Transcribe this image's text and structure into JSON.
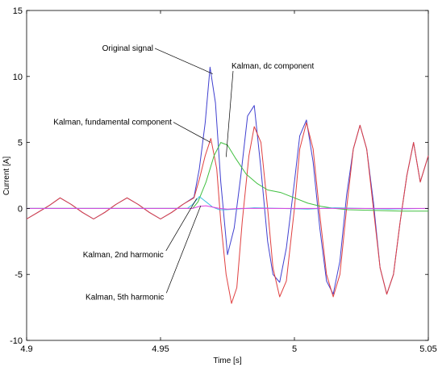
{
  "chart_data": {
    "type": "line",
    "title": "",
    "xlabel": "Time [s]",
    "ylabel": "Current [A]",
    "xlim": [
      4.9,
      5.05
    ],
    "ylim": [
      -10,
      15
    ],
    "xticks": [
      4.9,
      4.95,
      5,
      5.05
    ],
    "xtick_labels": [
      "4.9",
      "4.95",
      "5",
      "5.05"
    ],
    "yticks": [
      -10,
      -5,
      0,
      5,
      10,
      15
    ],
    "ytick_labels": [
      "-10",
      "-5",
      "0",
      "5",
      "10",
      "15"
    ],
    "grid": false,
    "legend": "none",
    "annotations": [
      {
        "id": "orig",
        "text": "Original signal",
        "x": 4.9282,
        "y": 11.95,
        "anchor": "start",
        "arrow_to": [
          4.9695,
          10.2
        ]
      },
      {
        "id": "dc",
        "text": "Kalman, dc component",
        "x": 4.9765,
        "y": 10.6,
        "anchor": "start",
        "arrow_to": [
          4.9745,
          3.9
        ]
      },
      {
        "id": "fund",
        "text": "Kalman, fundamental component",
        "x": 4.91,
        "y": 6.35,
        "anchor": "start",
        "arrow_to": [
          4.9687,
          5.0
        ]
      },
      {
        "id": "h2",
        "text": "Kalman, 2nd harmonic",
        "x": 4.921,
        "y": -3.7,
        "anchor": "start",
        "arrow_to": [
          4.9635,
          0.75
        ]
      },
      {
        "id": "h5",
        "text": "Kalman, 5th harmonic",
        "x": 4.922,
        "y": -6.9,
        "anchor": "start",
        "arrow_to": [
          4.965,
          0.2
        ]
      }
    ],
    "series": [
      {
        "id": "original",
        "color": "#4040d0",
        "x": [
          4.9,
          4.9042,
          4.9083,
          4.9125,
          4.9167,
          4.9208,
          4.925,
          4.9292,
          4.9333,
          4.9375,
          4.9417,
          4.9458,
          4.95,
          4.9542,
          4.9583,
          4.9625,
          4.9645,
          4.9667,
          4.9685,
          4.9705,
          4.9725,
          4.975,
          4.9775,
          4.98,
          4.9825,
          4.985,
          4.9875,
          4.99,
          4.992,
          4.9945,
          4.997,
          5.0,
          5.002,
          5.0045,
          5.007,
          5.0095,
          5.012,
          5.0145,
          5.017,
          5.0195,
          5.022,
          5.0245,
          5.027,
          5.0295,
          5.032,
          5.0345,
          5.037,
          5.0395,
          5.042,
          5.0445,
          5.047,
          5.05
        ],
        "y": [
          -0.8,
          -0.3,
          0.2,
          0.8,
          0.3,
          -0.3,
          -0.8,
          -0.3,
          0.3,
          0.8,
          0.3,
          -0.3,
          -0.8,
          -0.3,
          0.3,
          0.85,
          3.0,
          6.5,
          10.7,
          8.0,
          2.0,
          -3.5,
          -1.5,
          2.5,
          7.0,
          7.8,
          3.0,
          -2.5,
          -5.0,
          -5.6,
          -3.0,
          2.0,
          5.5,
          6.7,
          3.5,
          -1.5,
          -5.5,
          -6.5,
          -4.0,
          1.0,
          4.5,
          6.3,
          4.5,
          0.5,
          -4.5,
          -6.5,
          -5.0,
          -1.0,
          2.5,
          5.0,
          2.0,
          4.0
        ]
      },
      {
        "id": "fundamental",
        "color": "#e04040",
        "x": [
          4.9,
          4.9042,
          4.9083,
          4.9125,
          4.9167,
          4.9208,
          4.925,
          4.9292,
          4.9333,
          4.9375,
          4.9417,
          4.9458,
          4.95,
          4.9542,
          4.9583,
          4.9625,
          4.9645,
          4.9667,
          4.9688,
          4.971,
          4.9725,
          4.9745,
          4.9765,
          4.9785,
          4.9805,
          4.983,
          4.985,
          4.9875,
          4.99,
          4.992,
          4.9945,
          4.997,
          5.0,
          5.002,
          5.0045,
          5.007,
          5.0095,
          5.012,
          5.0145,
          5.017,
          5.0195,
          5.022,
          5.0245,
          5.027,
          5.0295,
          5.032,
          5.0345,
          5.037,
          5.0395,
          5.042,
          5.0445,
          5.047,
          5.05
        ],
        "y": [
          -0.8,
          -0.3,
          0.2,
          0.8,
          0.3,
          -0.3,
          -0.8,
          -0.3,
          0.3,
          0.8,
          0.3,
          -0.3,
          -0.8,
          -0.3,
          0.3,
          0.8,
          2.2,
          4.0,
          5.3,
          3.0,
          -1.0,
          -5.0,
          -7.2,
          -6.0,
          -1.0,
          4.0,
          6.2,
          5.0,
          0.0,
          -4.5,
          -6.7,
          -5.5,
          0.0,
          4.5,
          6.5,
          4.5,
          -0.5,
          -5.0,
          -6.7,
          -5.0,
          0.0,
          4.5,
          6.3,
          4.5,
          0.0,
          -4.5,
          -6.5,
          -5.0,
          -1.0,
          2.5,
          5.0,
          2.0,
          4.0
        ]
      },
      {
        "id": "dc",
        "color": "#40c040",
        "x": [
          4.9,
          4.962,
          4.964,
          4.967,
          4.97,
          4.9725,
          4.975,
          4.978,
          4.982,
          4.986,
          4.99,
          4.995,
          5.0,
          5.005,
          5.01,
          5.015,
          5.02,
          5.03,
          5.04,
          5.05
        ],
        "y": [
          0.0,
          0.0,
          0.5,
          2.0,
          4.0,
          5.0,
          4.8,
          3.8,
          2.6,
          1.9,
          1.4,
          1.2,
          0.8,
          0.4,
          0.15,
          0.0,
          -0.1,
          -0.15,
          -0.2,
          -0.2
        ]
      },
      {
        "id": "harmonic2",
        "color": "#40c0e0",
        "x": [
          4.9,
          4.96,
          4.962,
          4.9645,
          4.967,
          4.9695,
          4.972,
          4.9745,
          4.978,
          4.985,
          4.995,
          5.005,
          5.015,
          5.025,
          5.035,
          5.05
        ],
        "y": [
          0.0,
          0.0,
          0.3,
          0.9,
          0.5,
          0.1,
          -0.1,
          -0.1,
          -0.05,
          0.05,
          0.0,
          -0.05,
          0.05,
          0.0,
          -0.05,
          0.0
        ]
      },
      {
        "id": "harmonic5",
        "color": "#e040e0",
        "x": [
          4.9,
          4.962,
          4.9645,
          4.967,
          4.9695,
          4.972,
          4.975,
          4.98,
          4.99,
          5.0,
          5.01,
          5.02,
          5.03,
          5.04,
          5.05
        ],
        "y": [
          0.0,
          0.0,
          0.15,
          0.2,
          0.1,
          0.0,
          -0.05,
          0.0,
          0.0,
          0.0,
          0.0,
          0.0,
          0.0,
          0.0,
          0.0
        ]
      }
    ]
  }
}
